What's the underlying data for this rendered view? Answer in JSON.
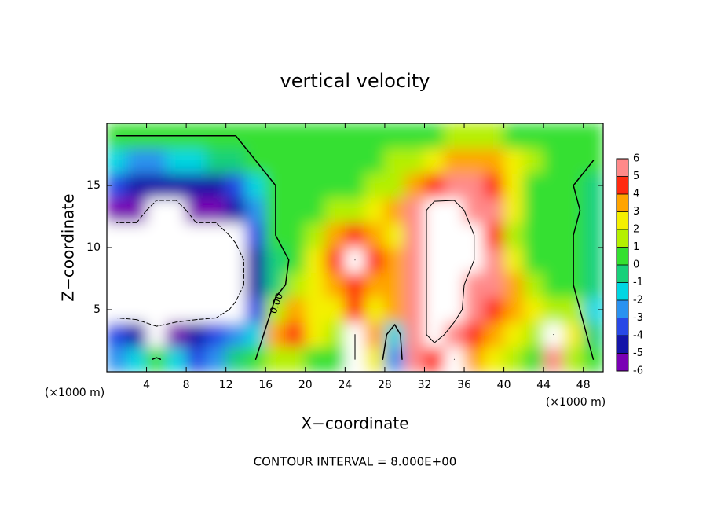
{
  "chart_data": {
    "type": "contour",
    "title": "vertical velocity",
    "xlabel": "X−coordinate",
    "ylabel": "Z−coordinate",
    "x_unit": "(×1000 m)",
    "y_unit": "(×1000 m)",
    "footer": "CONTOUR INTERVAL = 8.000E+00",
    "xlim": [
      0,
      50
    ],
    "ylim": [
      0,
      20
    ],
    "xticks": [
      4,
      8,
      12,
      16,
      20,
      24,
      28,
      32,
      36,
      40,
      44,
      48
    ],
    "yticks": [
      5,
      10,
      15
    ],
    "x": [
      1,
      3,
      5,
      7,
      9,
      11,
      13,
      15,
      17,
      19,
      21,
      23,
      25,
      27,
      29,
      31,
      33,
      35,
      37,
      39,
      41,
      43,
      45,
      47,
      49
    ],
    "z": [
      1,
      3,
      5,
      7,
      9,
      11,
      13,
      15,
      17,
      19
    ],
    "values": [
      [
        -3,
        -2,
        0.5,
        -2,
        -4,
        -3,
        -1,
        0,
        1,
        1,
        0.5,
        0.5,
        8,
        2,
        -3,
        5,
        4,
        8,
        3,
        2,
        1,
        0,
        6,
        1,
        0
      ],
      [
        -4,
        -5,
        -7,
        -6,
        -5,
        -4,
        -3,
        -2,
        3,
        4,
        2,
        1,
        8,
        3,
        -2,
        5,
        10,
        6,
        4,
        3,
        2,
        1,
        8,
        2,
        -1
      ],
      [
        -10,
        -10,
        -10,
        -10,
        -10,
        -10,
        -7,
        -4,
        1,
        3,
        2,
        2,
        4,
        2,
        3,
        5,
        10,
        10,
        5,
        4,
        3,
        2,
        1.5,
        1,
        -2
      ],
      [
        -10,
        -10,
        -10,
        -10,
        -10,
        -10,
        -10,
        -5,
        -1,
        1,
        2,
        3,
        4,
        3,
        3,
        5,
        10,
        10,
        6,
        5,
        3,
        1,
        0.5,
        0,
        -1
      ],
      [
        -10,
        -10,
        -10,
        -10,
        -10,
        -10,
        -10,
        -5,
        -1,
        0.5,
        2,
        4,
        8,
        4,
        3,
        5,
        10,
        10,
        8,
        5,
        2,
        0.5,
        0,
        0,
        -1
      ],
      [
        -10,
        -10,
        -10,
        -10,
        -10,
        -10,
        -7,
        -4,
        0,
        0.5,
        1.5,
        3,
        4,
        3,
        2,
        5,
        10,
        10,
        8,
        4,
        1.5,
        0,
        0,
        0,
        -1
      ],
      [
        -6,
        -6,
        -10,
        -10,
        -6,
        -6,
        -5,
        -3,
        0,
        0,
        0.5,
        1,
        1.5,
        2,
        3,
        5,
        10,
        10,
        6,
        5,
        2,
        0,
        0,
        0.5,
        -1
      ],
      [
        -4,
        -4.5,
        -5,
        -5,
        -5,
        -4.5,
        -4,
        -2,
        0,
        0,
        0,
        0.5,
        0.5,
        1,
        1.5,
        3,
        4.5,
        5,
        5,
        4.5,
        2,
        0.5,
        0,
        0,
        -0.5
      ],
      [
        -2,
        -2.5,
        -2.5,
        -2,
        -1.5,
        -1,
        -0.5,
        0,
        0,
        0,
        0,
        0,
        0.5,
        0.5,
        1,
        1.5,
        2.5,
        3,
        3,
        3,
        2,
        1,
        0,
        0,
        0
      ],
      [
        0,
        0,
        0,
        0,
        0,
        0,
        0,
        0.5,
        0,
        0,
        0,
        0,
        0,
        0,
        0,
        0,
        0.5,
        1,
        1,
        1,
        0.5,
        0,
        0,
        0,
        0
      ]
    ],
    "colorbar_ticks": [
      -6,
      -5,
      -4,
      -3,
      -2,
      -1,
      0,
      1,
      2,
      3,
      4,
      5,
      6
    ],
    "colors": [
      "#7a00b4",
      "#1414a8",
      "#2848e6",
      "#2a92f0",
      "#00d6e2",
      "#18d07a",
      "#34e030",
      "#b4f000",
      "#f4f000",
      "#ffa400",
      "#ff2a10",
      "#ff8a8a"
    ],
    "out_of_range_color": "#ffffff",
    "contour_levels": [
      {
        "value": 0,
        "label": "0.00"
      },
      -8,
      8
    ]
  }
}
